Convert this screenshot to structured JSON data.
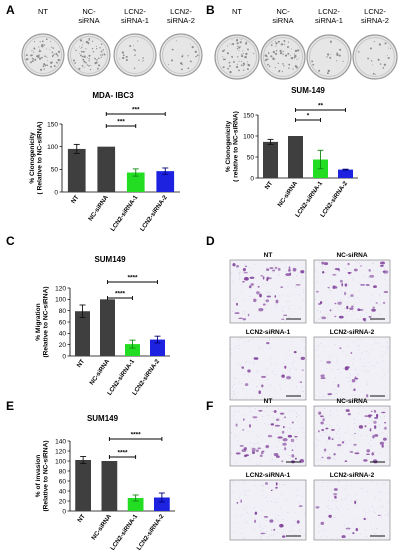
{
  "panels": [
    {
      "id": "A",
      "letter": "A",
      "dish_labels": [
        [
          "NT"
        ],
        [
          "NC-",
          "siRNA"
        ],
        [
          "LCN2-",
          "siRNA-1"
        ],
        [
          "LCN2-",
          "siRNA-2"
        ]
      ]
    },
    {
      "id": "B",
      "letter": "B",
      "dish_labels": [
        [
          "NT"
        ],
        [
          "NC-",
          "siRNA"
        ],
        [
          "LCN2-",
          "siRNA-1"
        ],
        [
          "LCN2-",
          "siRNA-2"
        ]
      ]
    },
    {
      "id": "C",
      "letter": "C"
    },
    {
      "id": "D",
      "letter": "D",
      "image_labels": [
        "NT",
        "NC-siRNA",
        "LCN2-siRNA-1",
        "LCN2-siRNA-2"
      ]
    },
    {
      "id": "E",
      "letter": "E"
    },
    {
      "id": "F",
      "letter": "F",
      "image_labels": [
        "NT",
        "NC-siRNA",
        "LCN2-siRNA-1",
        "LCN2-siRNA-2"
      ]
    }
  ],
  "colors": {
    "dark_bar": "#3f3f3f",
    "green_bar": "#22dd22",
    "blue_bar": "#1c22e0",
    "error_green": "#118811",
    "error_blue": "#000077",
    "dish_bg": "#e6e6e6",
    "micro_bg": "#f1f0f6",
    "cell_purple": "#7f3f9a"
  },
  "icons": [
    "petri-dish-image",
    "microscopy-image",
    "scale-bar"
  ],
  "chart_data": [
    {
      "panel": "A",
      "type": "bar",
      "title": "MDA- IBC3",
      "ylabel": "% Clonogenicity\n( Relative to NC-siRNA)",
      "ylim": [
        0,
        150
      ],
      "yticks": [
        0,
        50,
        100,
        150
      ],
      "categories": [
        "NT",
        "NC-siRNA",
        "LCN2-siRNA-1",
        "LCN2-siRNA-2"
      ],
      "values": [
        95,
        100,
        43,
        46
      ],
      "errors": [
        10,
        0,
        8,
        7
      ],
      "bar_colors": [
        "#3f3f3f",
        "#3f3f3f",
        "#22dd22",
        "#1c22e0"
      ],
      "significance": [
        {
          "from": 1,
          "to": 2,
          "label": "***"
        },
        {
          "from": 1,
          "to": 3,
          "label": "***"
        }
      ]
    },
    {
      "panel": "B",
      "type": "bar",
      "title": "SUM-149",
      "ylabel": "% Clonogenicity\n( relative to NC-siRNA)",
      "ylim": [
        0,
        150
      ],
      "yticks": [
        0,
        50,
        100,
        150
      ],
      "categories": [
        "NT",
        "NC-siRNA",
        "LCN2-siRNA-1",
        "LCN2-siRNA-2"
      ],
      "values": [
        86,
        100,
        44,
        20
      ],
      "errors": [
        6,
        0,
        22,
        1
      ],
      "bar_colors": [
        "#3f3f3f",
        "#3f3f3f",
        "#22dd22",
        "#1c22e0"
      ],
      "significance": [
        {
          "from": 1,
          "to": 2,
          "label": "*"
        },
        {
          "from": 1,
          "to": 3,
          "label": "**"
        }
      ]
    },
    {
      "panel": "C",
      "type": "bar",
      "title": "SUM149",
      "ylabel": "% Migration\n(Relative to NC-siRNA)",
      "ylim": [
        0,
        120
      ],
      "yticks": [
        0,
        20,
        40,
        60,
        80,
        100,
        120
      ],
      "categories": [
        "NT",
        "NC-siRNA",
        "LCN2-siRNA-1",
        "LCN2-siRNA-2"
      ],
      "values": [
        79,
        100,
        21,
        29
      ],
      "errors": [
        11,
        0,
        7,
        6
      ],
      "bar_colors": [
        "#3f3f3f",
        "#3f3f3f",
        "#22dd22",
        "#1c22e0"
      ],
      "significance": [
        {
          "from": 1,
          "to": 2,
          "label": "****"
        },
        {
          "from": 1,
          "to": 3,
          "label": "****"
        }
      ]
    },
    {
      "panel": "E",
      "type": "bar",
      "title": "SUM149",
      "ylabel": "% of invasion\n(Relative to NC-siRNA)",
      "ylim": [
        0,
        140
      ],
      "yticks": [
        0,
        20,
        40,
        60,
        80,
        100,
        120,
        140
      ],
      "categories": [
        "NT",
        "NC-siRNA",
        "LCN2-siRNA-1",
        "LCN2-siRNA-2"
      ],
      "values": [
        102,
        100,
        26,
        27
      ],
      "errors": [
        7,
        0,
        6,
        9
      ],
      "bar_colors": [
        "#3f3f3f",
        "#3f3f3f",
        "#22dd22",
        "#1c22e0"
      ],
      "significance": [
        {
          "from": 1,
          "to": 2,
          "label": "****"
        },
        {
          "from": 1,
          "to": 3,
          "label": "****"
        }
      ]
    }
  ]
}
